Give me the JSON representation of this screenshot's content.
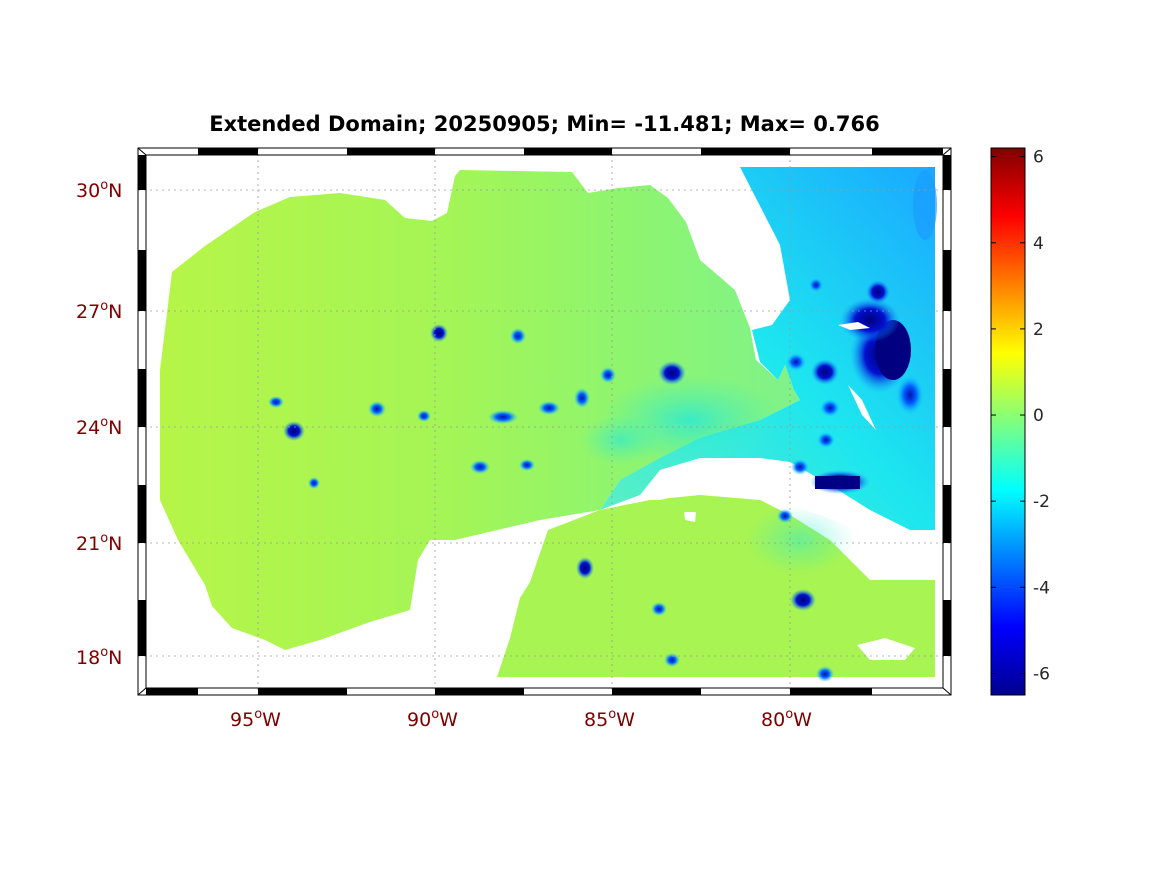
{
  "figure": {
    "title": "Extended Domain; 20250905; Min= -11.481; Max= 0.766"
  },
  "axes": {
    "lat_labels": [
      {
        "deg": "30",
        "hemi": "N",
        "value": 30
      },
      {
        "deg": "27",
        "hemi": "N",
        "value": 27
      },
      {
        "deg": "24",
        "hemi": "N",
        "value": 24
      },
      {
        "deg": "21",
        "hemi": "N",
        "value": 21
      },
      {
        "deg": "18",
        "hemi": "N",
        "value": 18
      }
    ],
    "lon_labels": [
      {
        "deg": "95",
        "hemi": "W",
        "value": -95
      },
      {
        "deg": "90",
        "hemi": "W",
        "value": -90
      },
      {
        "deg": "85",
        "hemi": "W",
        "value": -85
      },
      {
        "deg": "80",
        "hemi": "W",
        "value": -80
      }
    ],
    "lon_range": [
      -98.5,
      -75.5
    ],
    "lat_range": [
      17.0,
      31.0
    ],
    "grid": true
  },
  "colorbar": {
    "ticks": [
      "6",
      "4",
      "2",
      "0",
      "-2",
      "-4",
      "-6"
    ],
    "tick_values": [
      6,
      4,
      2,
      0,
      -2,
      -4,
      -6
    ],
    "range": [
      -6.5,
      6.2
    ],
    "colormap": "jet"
  },
  "colors": {
    "land": "#ffffff",
    "base_field": "#9ef55e",
    "west_field": "#b4f548",
    "cyan": "#00e0f5",
    "deep_blue": "#0000a0",
    "label": "#7f0000"
  }
}
